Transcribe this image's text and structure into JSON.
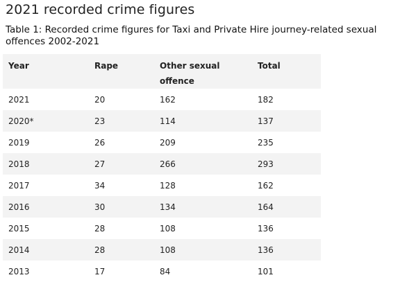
{
  "page": {
    "title": "2021 recorded crime figures",
    "caption": "Table 1: Recorded crime figures for Taxi and Private Hire journey-related sexual offences 2002-2021"
  },
  "table": {
    "headers": [
      "Year",
      "Rape",
      "Other sexual offence",
      "Total"
    ],
    "rows": [
      [
        "2021",
        "20",
        "162",
        "182"
      ],
      [
        "2020*",
        "23",
        "114",
        "137"
      ],
      [
        "2019",
        "26",
        "209",
        "235"
      ],
      [
        "2018",
        "27",
        "266",
        "293"
      ],
      [
        "2017",
        "34",
        "128",
        "162"
      ],
      [
        "2016",
        "30",
        "134",
        "164"
      ],
      [
        "2015",
        "28",
        "108",
        "136"
      ],
      [
        "2014",
        "28",
        "108",
        "136"
      ],
      [
        "2013",
        "17",
        "84",
        "101"
      ]
    ]
  },
  "chart_data": {
    "type": "table",
    "title": "Table 1: Recorded crime figures for Taxi and Private Hire journey-related sexual offences 2002-2021",
    "columns": [
      "Year",
      "Rape",
      "Other sexual offence",
      "Total"
    ],
    "rows": [
      [
        "2021",
        20,
        162,
        182
      ],
      [
        "2020*",
        23,
        114,
        137
      ],
      [
        "2019",
        26,
        209,
        235
      ],
      [
        "2018",
        27,
        266,
        293
      ],
      [
        "2017",
        34,
        128,
        162
      ],
      [
        "2016",
        30,
        134,
        164
      ],
      [
        "2015",
        28,
        108,
        136
      ],
      [
        "2014",
        28,
        108,
        136
      ],
      [
        "2013",
        17,
        84,
        101
      ]
    ]
  }
}
